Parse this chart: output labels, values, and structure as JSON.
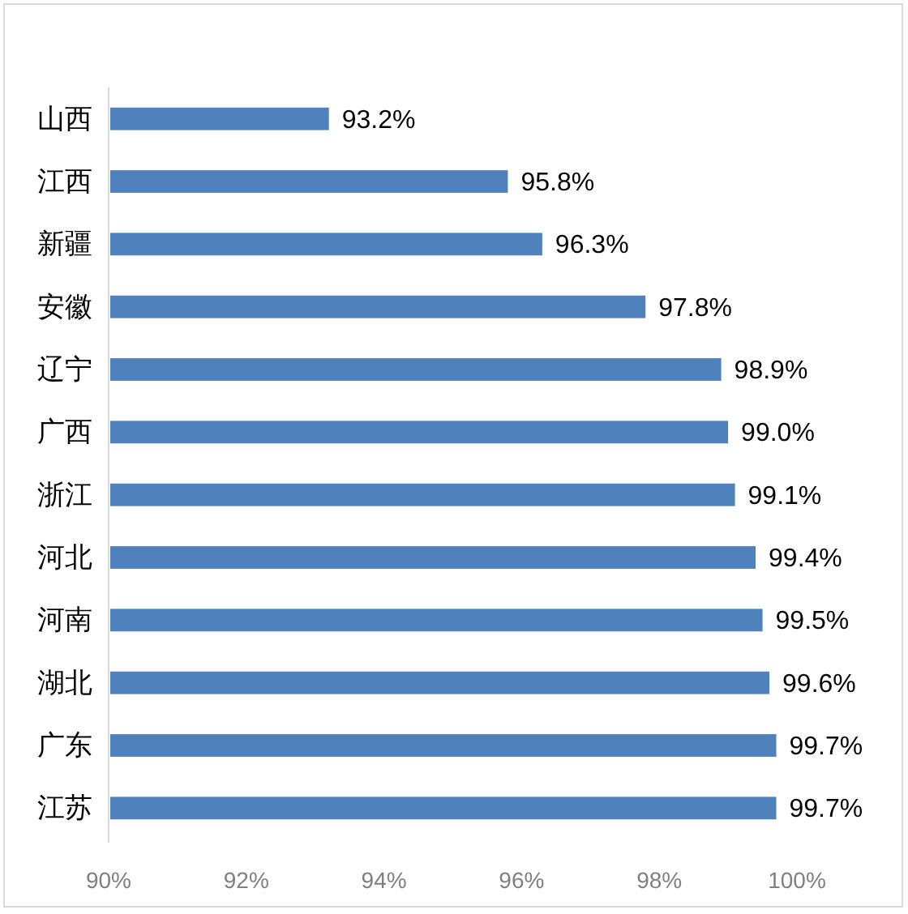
{
  "chart_data": {
    "type": "bar",
    "orientation": "horizontal",
    "categories": [
      "山西",
      "江西",
      "新疆",
      "安徽",
      "辽宁",
      "广西",
      "浙江",
      "河北",
      "河南",
      "湖北",
      "广东",
      "江苏"
    ],
    "values": [
      93.2,
      95.8,
      96.3,
      97.8,
      98.9,
      99.0,
      99.1,
      99.4,
      99.5,
      99.6,
      99.7,
      99.7
    ],
    "value_labels": [
      "93.2%",
      "95.8%",
      "96.3%",
      "97.8%",
      "98.9%",
      "99.0%",
      "99.1%",
      "99.4%",
      "99.5%",
      "99.6%",
      "99.7%",
      "99.7%"
    ],
    "color": "#4f81bd",
    "xlim": [
      90,
      100
    ],
    "xticks": [
      {
        "value": 90,
        "label": "90%"
      },
      {
        "value": 92,
        "label": "92%"
      },
      {
        "value": 94,
        "label": "94%"
      },
      {
        "value": 96,
        "label": "96%"
      },
      {
        "value": 98,
        "label": "98%"
      },
      {
        "value": 100,
        "label": "100%"
      }
    ]
  }
}
